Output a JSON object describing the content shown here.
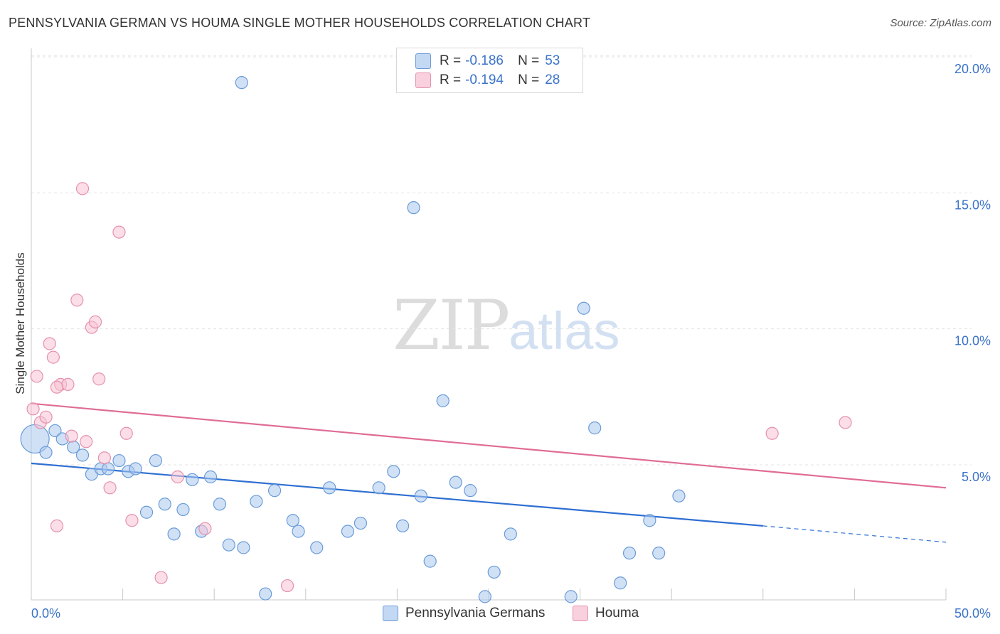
{
  "header": {
    "title": "PENNSYLVANIA GERMAN VS HOUMA SINGLE MOTHER HOUSEHOLDS CORRELATION CHART",
    "source": "Source: ZipAtlas.com"
  },
  "watermark": {
    "zip": "ZIP",
    "atlas": "atlas"
  },
  "legend": {
    "rows": [
      {
        "r_label": "R = ",
        "r_value": "-0.186",
        "n_label": "N = ",
        "n_value": "53"
      },
      {
        "r_label": "R = ",
        "r_value": "-0.194",
        "n_label": "N = ",
        "n_value": "28"
      }
    ]
  },
  "chart_data": {
    "type": "scatter",
    "title": "PENNSYLVANIA GERMAN VS HOUMA SINGLE MOTHER HOUSEHOLDS CORRELATION CHART",
    "xlabel": "",
    "ylabel": "Single Mother Households",
    "xlim": [
      0,
      50
    ],
    "ylim": [
      0,
      20.5
    ],
    "x_tick_labels": [
      "0.0%",
      "50.0%"
    ],
    "y_ticks": [
      5,
      10,
      15,
      20
    ],
    "y_tick_labels": [
      "5.0%",
      "10.0%",
      "15.0%",
      "20.0%"
    ],
    "grid": true,
    "legend_position": "top-center",
    "series": [
      {
        "name": "Pennsylvania Germans",
        "color": "#a9c8ef",
        "stroke": "#6a9bd8",
        "trend_color": "#2e6fd1",
        "trend": {
          "x0": 0,
          "y0": 5.5,
          "x1": 40,
          "y1": 3.2,
          "dash_to_x": 50,
          "dash_to_y": 2.6
        },
        "points": [
          [
            0.2,
            6.4
          ],
          [
            0.8,
            5.9
          ],
          [
            1.3,
            6.7
          ],
          [
            1.7,
            6.4
          ],
          [
            2.3,
            6.1
          ],
          [
            2.8,
            5.8
          ],
          [
            3.3,
            5.1
          ],
          [
            3.8,
            5.3
          ],
          [
            4.2,
            5.3
          ],
          [
            4.8,
            5.6
          ],
          [
            5.3,
            5.2
          ],
          [
            5.7,
            5.3
          ],
          [
            6.3,
            3.7
          ],
          [
            6.8,
            5.6
          ],
          [
            7.3,
            4.0
          ],
          [
            7.8,
            2.9
          ],
          [
            8.3,
            3.8
          ],
          [
            8.8,
            4.9
          ],
          [
            9.3,
            3.0
          ],
          [
            9.8,
            5.0
          ],
          [
            10.3,
            4.0
          ],
          [
            10.8,
            2.5
          ],
          [
            11.5,
            19.5
          ],
          [
            11.6,
            2.4
          ],
          [
            12.3,
            4.1
          ],
          [
            12.8,
            0.7
          ],
          [
            13.3,
            4.5
          ],
          [
            14.3,
            3.4
          ],
          [
            14.6,
            3.0
          ],
          [
            15.6,
            2.4
          ],
          [
            16.3,
            4.6
          ],
          [
            17.3,
            3.0
          ],
          [
            18.0,
            3.3
          ],
          [
            19.0,
            4.6
          ],
          [
            19.8,
            5.2
          ],
          [
            20.3,
            3.2
          ],
          [
            20.9,
            14.9
          ],
          [
            21.3,
            4.3
          ],
          [
            21.8,
            1.9
          ],
          [
            22.5,
            7.8
          ],
          [
            23.2,
            4.8
          ],
          [
            24.0,
            4.5
          ],
          [
            24.8,
            0.6
          ],
          [
            25.3,
            1.5
          ],
          [
            26.2,
            2.9
          ],
          [
            29.5,
            0.6
          ],
          [
            30.2,
            11.2
          ],
          [
            30.8,
            6.8
          ],
          [
            32.2,
            1.1
          ],
          [
            32.7,
            2.2
          ],
          [
            33.8,
            3.4
          ],
          [
            34.3,
            2.2
          ],
          [
            35.4,
            4.3
          ]
        ]
      },
      {
        "name": "Houma",
        "color": "#f7c3d4",
        "stroke": "#e591ad",
        "trend_color": "#e06c96",
        "trend": {
          "x0": 0,
          "y0": 7.7,
          "x1": 50,
          "y1": 4.6
        },
        "points": [
          [
            0.1,
            7.5
          ],
          [
            0.3,
            8.7
          ],
          [
            0.5,
            7.0
          ],
          [
            0.8,
            7.2
          ],
          [
            1.0,
            9.9
          ],
          [
            1.2,
            9.4
          ],
          [
            1.4,
            3.2
          ],
          [
            1.6,
            8.4
          ],
          [
            2.0,
            8.4
          ],
          [
            2.2,
            6.5
          ],
          [
            2.5,
            11.5
          ],
          [
            2.8,
            15.6
          ],
          [
            3.0,
            6.3
          ],
          [
            3.3,
            10.5
          ],
          [
            3.5,
            10.7
          ],
          [
            3.7,
            8.6
          ],
          [
            4.0,
            5.7
          ],
          [
            4.3,
            4.6
          ],
          [
            4.8,
            14.0
          ],
          [
            5.2,
            6.6
          ],
          [
            5.5,
            3.4
          ],
          [
            7.1,
            1.3
          ],
          [
            8.0,
            5.0
          ],
          [
            9.5,
            3.1
          ],
          [
            14.0,
            1.0
          ],
          [
            40.5,
            6.6
          ],
          [
            44.5,
            7.0
          ],
          [
            1.4,
            8.3
          ]
        ]
      }
    ]
  },
  "bottom_legend": [
    {
      "label": "Pennsylvania Germans",
      "color": "#c3d8f3",
      "stroke": "#6a9bd8"
    },
    {
      "label": "Houma",
      "color": "#f9d0dd",
      "stroke": "#e591ad"
    }
  ]
}
